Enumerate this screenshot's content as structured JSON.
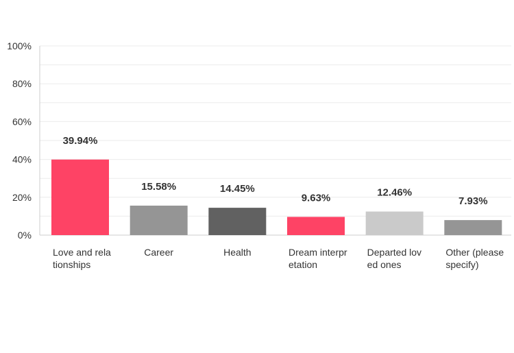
{
  "chart_data": {
    "type": "bar",
    "categories": [
      "Love and relationships",
      "Career",
      "Health",
      "Dream interpretation",
      "Departed loved ones",
      "Other (please specify)"
    ],
    "values": [
      39.94,
      15.58,
      14.45,
      9.63,
      12.46,
      7.93
    ],
    "data_labels": [
      "39.94%",
      "15.58%",
      "14.45%",
      "9.63%",
      "12.46%",
      "7.93%"
    ],
    "bar_colors": [
      "#fe4365",
      "#959595",
      "#616161",
      "#fe4365",
      "#cacaca",
      "#959595"
    ],
    "ylim": [
      0,
      100
    ],
    "yticks": [
      "0%",
      "20%",
      "40%",
      "60%",
      "80%",
      "100%"
    ],
    "ytick_values": [
      0,
      20,
      40,
      60,
      80,
      100
    ],
    "grid": true,
    "title": "",
    "xlabel": "",
    "ylabel": ""
  }
}
